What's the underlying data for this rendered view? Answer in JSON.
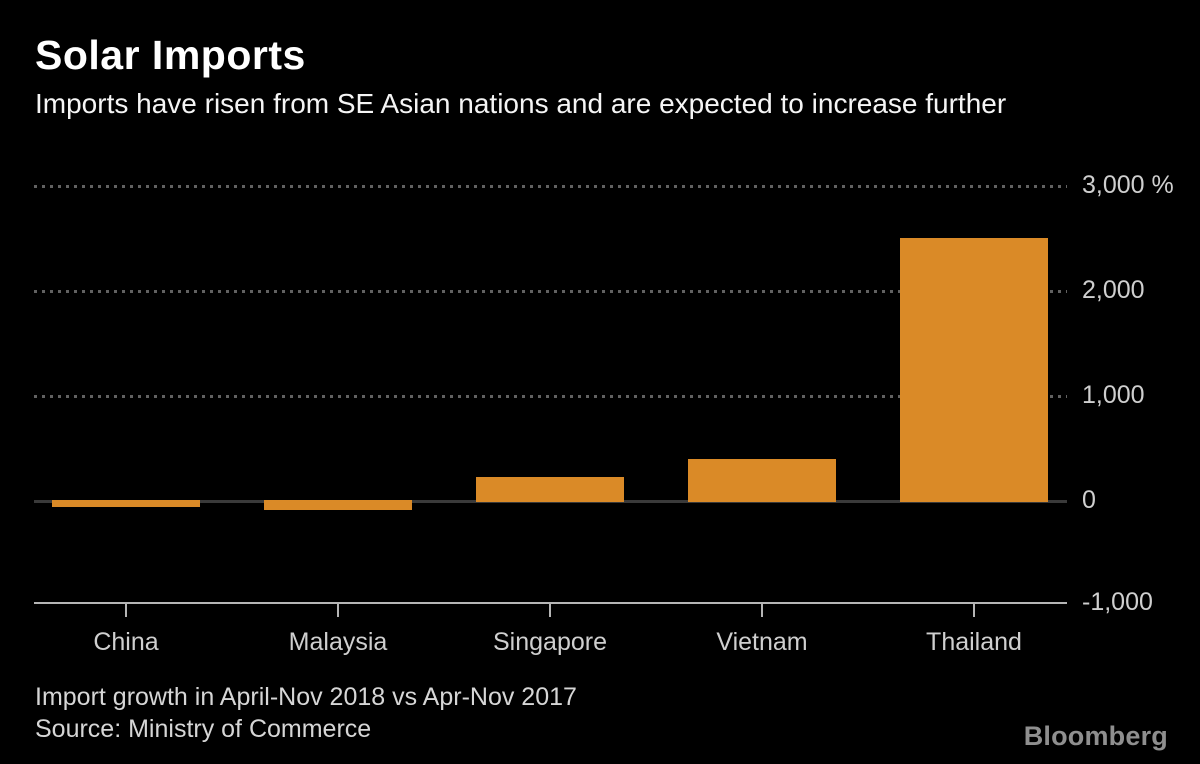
{
  "header": {
    "title": "Solar Imports",
    "subtitle": "Imports have risen from SE Asian nations and are expected to increase further"
  },
  "chart_data": {
    "type": "bar",
    "title": "Solar Imports",
    "subtitle": "Imports have risen from SE Asian nations and are expected to increase further",
    "categories": [
      "China",
      "Malaysia",
      "Singapore",
      "Vietnam",
      "Thailand"
    ],
    "values": [
      -50,
      -80,
      220,
      390,
      2500
    ],
    "unit": "%",
    "xlabel": "",
    "ylabel": "%",
    "ylim": [
      -1000,
      3000
    ],
    "yticks": [
      {
        "value": 3000,
        "label": "3,000 %"
      },
      {
        "value": 2000,
        "label": "2,000"
      },
      {
        "value": 1000,
        "label": "1,000"
      },
      {
        "value": 0,
        "label": "0"
      },
      {
        "value": -1000,
        "label": "-1,000"
      }
    ],
    "grid": "horizontal dotted lines at 1000, 2000, 3000; solid dark zero line; solid light baseline at -1000",
    "legend_position": "none",
    "colors": {
      "bar": "#DA8A27",
      "background": "#000000",
      "dotted_grid": "#616161",
      "zero_line": "#3a3a3a",
      "axis": "#b5b5b5",
      "tick_label": "#cfcfcf",
      "title": "#ffffff",
      "footnote": "#d6d6d6",
      "brand": "#8f8f8f"
    }
  },
  "footer": {
    "note": "Import growth in April-Nov 2018 vs Apr-Nov 2017",
    "source": "Source: Ministry of Commerce",
    "brand": "Bloomberg"
  }
}
